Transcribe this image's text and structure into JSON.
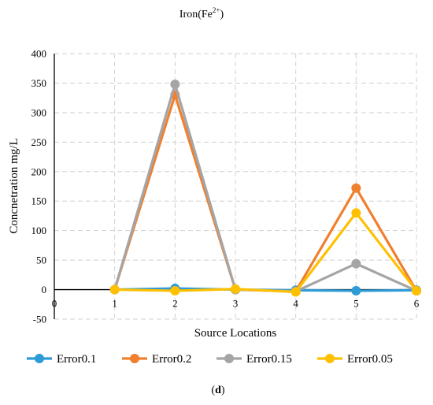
{
  "chart_data": {
    "type": "line",
    "title_main": "Iron(Fe",
    "title_sup": "2+",
    "title_close": ")",
    "xlabel": "Source Locations",
    "ylabel": "Concnetration mg/L",
    "xlim": [
      0,
      6
    ],
    "ylim": [
      -50,
      400
    ],
    "x_ticks": [
      "0",
      "1",
      "2",
      "3",
      "4",
      "5",
      "6"
    ],
    "y_ticks": [
      "-50",
      "0",
      "50",
      "100",
      "150",
      "200",
      "250",
      "300",
      "350",
      "400"
    ],
    "grid": true,
    "legend_position": "bottom",
    "x": [
      1,
      2,
      3,
      4,
      5,
      6
    ],
    "series": [
      {
        "name": "Error0.1",
        "color": "#2E9BD6",
        "values": [
          0,
          2,
          0,
          -1,
          -2,
          -1
        ]
      },
      {
        "name": "Error0.2",
        "color": "#F07F2E",
        "values": [
          0,
          330,
          0,
          -3,
          172,
          -2
        ]
      },
      {
        "name": "Error0.15",
        "color": "#A5A5A5",
        "values": [
          0,
          348,
          0,
          -3,
          44,
          -2
        ]
      },
      {
        "name": "Error0.05",
        "color": "#FFC000",
        "values": [
          0,
          -2,
          1,
          -4,
          130,
          -2
        ]
      }
    ]
  },
  "caption": {
    "open": "(",
    "letter": "d",
    "close": ")"
  }
}
